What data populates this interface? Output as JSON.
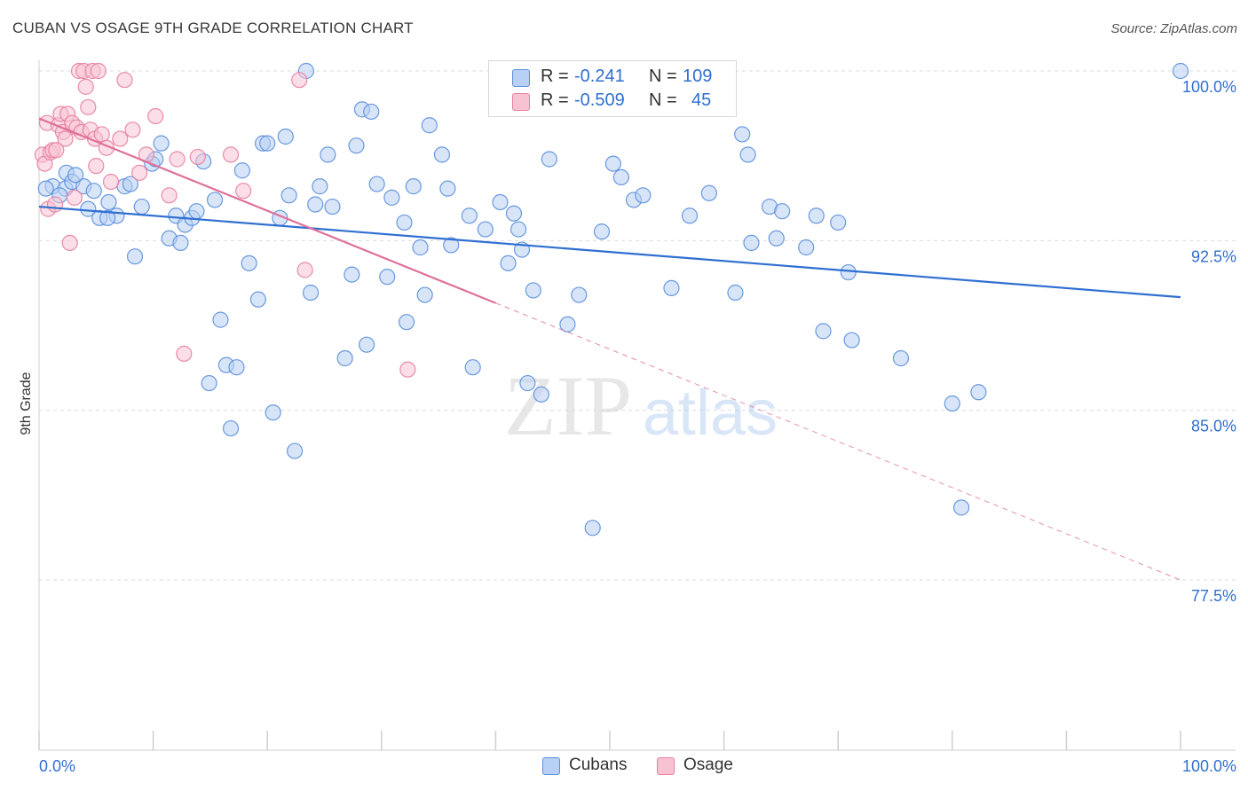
{
  "header": {
    "title": "CUBAN VS OSAGE 9TH GRADE CORRELATION CHART",
    "source": "Source: ZipAtlas.com"
  },
  "legend": {
    "r_label": "R =",
    "n_label": "N =",
    "series": [
      {
        "name": "Cubans",
        "r": "-0.241",
        "n": "109",
        "color": "#5a8fdb",
        "fill": "#b8d0f3"
      },
      {
        "name": "Osage",
        "r": "-0.509",
        "n": "45",
        "color": "#e77fa0",
        "fill": "#f7c3d3"
      }
    ]
  },
  "watermark": {
    "zip": "ZIP",
    "atlas": "atlas"
  },
  "chart_data": {
    "type": "scatter",
    "xlabel": "",
    "ylabel": "9th Grade",
    "xlim": [
      0,
      100
    ],
    "ylim": [
      70,
      100.8
    ],
    "x_tick_labels": [
      "0.0%",
      "100.0%"
    ],
    "y_ticks": [
      {
        "value": 100,
        "label": "100.0%"
      },
      {
        "value": 92.5,
        "label": "92.5%"
      },
      {
        "value": 85,
        "label": "85.0%"
      },
      {
        "value": 77.5,
        "label": "77.5%"
      }
    ],
    "grid": "horizontal dashed",
    "series": [
      {
        "name": "Cubans",
        "trend": {
          "x": [
            0,
            100
          ],
          "y": [
            94.0,
            90.0
          ],
          "solid_to": 100
        },
        "points": [
          [
            1.2,
            94.9
          ],
          [
            2.3,
            94.8
          ],
          [
            2.4,
            95.5
          ],
          [
            2.9,
            95.1
          ],
          [
            3.9,
            94.9
          ],
          [
            4.3,
            93.9
          ],
          [
            4.8,
            94.7
          ],
          [
            5.3,
            93.5
          ],
          [
            6.1,
            94.2
          ],
          [
            6.8,
            93.6
          ],
          [
            7.5,
            94.9
          ],
          [
            8.0,
            95.0
          ],
          [
            8.4,
            91.8
          ],
          [
            9.0,
            94.0
          ],
          [
            9.9,
            95.9
          ],
          [
            10.2,
            96.1
          ],
          [
            10.7,
            96.8
          ],
          [
            11.4,
            92.6
          ],
          [
            12.0,
            93.6
          ],
          [
            12.4,
            92.4
          ],
          [
            12.8,
            93.2
          ],
          [
            13.4,
            93.5
          ],
          [
            13.8,
            93.8
          ],
          [
            14.4,
            96.0
          ],
          [
            14.9,
            86.2
          ],
          [
            15.4,
            94.3
          ],
          [
            15.9,
            89.0
          ],
          [
            16.4,
            87.0
          ],
          [
            16.8,
            84.2
          ],
          [
            17.3,
            86.9
          ],
          [
            17.8,
            95.6
          ],
          [
            18.4,
            91.5
          ],
          [
            19.2,
            89.9
          ],
          [
            19.6,
            96.8
          ],
          [
            20.0,
            96.8
          ],
          [
            20.5,
            84.9
          ],
          [
            21.1,
            93.5
          ],
          [
            21.6,
            97.1
          ],
          [
            21.9,
            94.5
          ],
          [
            22.4,
            83.2
          ],
          [
            23.4,
            100.0
          ],
          [
            23.8,
            90.2
          ],
          [
            24.2,
            94.1
          ],
          [
            24.6,
            94.9
          ],
          [
            25.3,
            96.3
          ],
          [
            25.7,
            94.0
          ],
          [
            26.8,
            87.3
          ],
          [
            27.4,
            91.0
          ],
          [
            27.8,
            96.7
          ],
          [
            28.3,
            98.3
          ],
          [
            28.7,
            87.9
          ],
          [
            29.1,
            98.2
          ],
          [
            29.6,
            95.0
          ],
          [
            30.5,
            90.9
          ],
          [
            30.9,
            94.4
          ],
          [
            32.0,
            93.3
          ],
          [
            32.2,
            88.9
          ],
          [
            32.8,
            94.9
          ],
          [
            33.4,
            92.2
          ],
          [
            33.8,
            90.1
          ],
          [
            34.2,
            97.6
          ],
          [
            35.3,
            96.3
          ],
          [
            35.8,
            94.8
          ],
          [
            36.1,
            92.3
          ],
          [
            37.7,
            93.6
          ],
          [
            38.0,
            86.9
          ],
          [
            39.1,
            93.0
          ],
          [
            40.4,
            94.2
          ],
          [
            41.1,
            91.5
          ],
          [
            41.6,
            93.7
          ],
          [
            42.0,
            93.0
          ],
          [
            42.3,
            92.1
          ],
          [
            42.8,
            86.2
          ],
          [
            43.3,
            90.3
          ],
          [
            44.0,
            85.7
          ],
          [
            44.7,
            96.1
          ],
          [
            46.3,
            88.8
          ],
          [
            47.3,
            90.1
          ],
          [
            48.5,
            79.8
          ],
          [
            49.3,
            92.9
          ],
          [
            50.3,
            95.9
          ],
          [
            51.0,
            95.3
          ],
          [
            52.1,
            94.3
          ],
          [
            52.9,
            94.5
          ],
          [
            55.4,
            90.4
          ],
          [
            57.0,
            93.6
          ],
          [
            58.7,
            94.6
          ],
          [
            61.0,
            90.2
          ],
          [
            61.6,
            97.2
          ],
          [
            62.1,
            96.3
          ],
          [
            62.4,
            92.4
          ],
          [
            64.0,
            94.0
          ],
          [
            64.6,
            92.6
          ],
          [
            65.1,
            93.8
          ],
          [
            67.2,
            92.2
          ],
          [
            68.1,
            93.6
          ],
          [
            68.7,
            88.5
          ],
          [
            70.0,
            93.3
          ],
          [
            70.9,
            91.1
          ],
          [
            71.2,
            88.1
          ],
          [
            75.5,
            87.3
          ],
          [
            80.0,
            85.3
          ],
          [
            80.8,
            80.7
          ],
          [
            82.3,
            85.8
          ],
          [
            100.0,
            100.0
          ],
          [
            0.6,
            94.8
          ],
          [
            1.8,
            94.5
          ],
          [
            3.2,
            95.4
          ],
          [
            6.0,
            93.5
          ]
        ]
      },
      {
        "name": "Osage",
        "trend": {
          "x": [
            0,
            100
          ],
          "y": [
            97.9,
            77.5
          ],
          "solid_to": 40
        },
        "points": [
          [
            0.3,
            96.3
          ],
          [
            0.5,
            95.9
          ],
          [
            0.7,
            97.7
          ],
          [
            0.8,
            93.9
          ],
          [
            1.0,
            96.4
          ],
          [
            1.2,
            96.5
          ],
          [
            1.4,
            94.1
          ],
          [
            1.7,
            97.6
          ],
          [
            1.9,
            98.1
          ],
          [
            2.1,
            97.3
          ],
          [
            2.3,
            97.0
          ],
          [
            2.5,
            98.1
          ],
          [
            2.7,
            92.4
          ],
          [
            2.9,
            97.7
          ],
          [
            3.1,
            94.4
          ],
          [
            3.3,
            97.5
          ],
          [
            3.5,
            100.0
          ],
          [
            3.7,
            97.3
          ],
          [
            3.9,
            100.0
          ],
          [
            4.1,
            99.3
          ],
          [
            4.3,
            98.4
          ],
          [
            4.5,
            97.4
          ],
          [
            4.7,
            100.0
          ],
          [
            4.9,
            97.0
          ],
          [
            5.0,
            95.8
          ],
          [
            5.2,
            100.0
          ],
          [
            5.5,
            97.2
          ],
          [
            5.9,
            96.6
          ],
          [
            6.3,
            95.1
          ],
          [
            7.1,
            97.0
          ],
          [
            7.5,
            99.6
          ],
          [
            8.2,
            97.4
          ],
          [
            8.8,
            95.5
          ],
          [
            9.4,
            96.3
          ],
          [
            10.2,
            98.0
          ],
          [
            11.4,
            94.5
          ],
          [
            12.1,
            96.1
          ],
          [
            12.7,
            87.5
          ],
          [
            13.9,
            96.2
          ],
          [
            16.8,
            96.3
          ],
          [
            17.9,
            94.7
          ],
          [
            22.8,
            99.6
          ],
          [
            23.3,
            91.2
          ],
          [
            32.3,
            86.8
          ],
          [
            1.5,
            96.5
          ]
        ]
      }
    ]
  }
}
